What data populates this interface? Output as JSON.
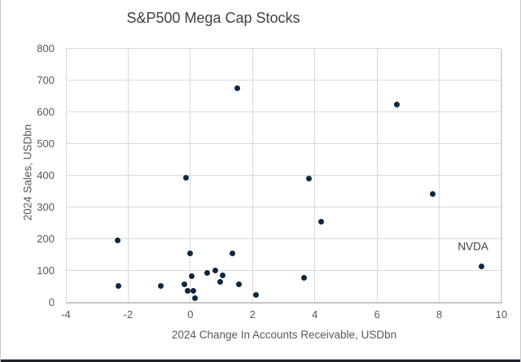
{
  "chart_data": {
    "type": "scatter",
    "title": "S&P500 Mega Cap Stocks",
    "xlabel": "2024 Change In Accounts Receivable, USDbn",
    "ylabel": "2024 Sales, USDbn",
    "xlim": [
      -4,
      10
    ],
    "ylim": [
      0,
      800
    ],
    "xticks": [
      -4,
      -2,
      0,
      2,
      4,
      6,
      8,
      10
    ],
    "yticks": [
      0,
      100,
      200,
      300,
      400,
      500,
      600,
      700,
      800
    ],
    "grid": true,
    "legend": false,
    "points": [
      {
        "x": -2.35,
        "y": 195
      },
      {
        "x": -2.3,
        "y": 52
      },
      {
        "x": -0.95,
        "y": 52
      },
      {
        "x": -0.2,
        "y": 56
      },
      {
        "x": -0.1,
        "y": 37
      },
      {
        "x": -0.15,
        "y": 393
      },
      {
        "x": 0.0,
        "y": 154
      },
      {
        "x": 0.05,
        "y": 83
      },
      {
        "x": 0.1,
        "y": 35
      },
      {
        "x": 0.15,
        "y": 12
      },
      {
        "x": 0.55,
        "y": 92
      },
      {
        "x": 0.8,
        "y": 100
      },
      {
        "x": 0.95,
        "y": 64
      },
      {
        "x": 1.05,
        "y": 85
      },
      {
        "x": 1.35,
        "y": 155
      },
      {
        "x": 1.5,
        "y": 675
      },
      {
        "x": 1.55,
        "y": 57
      },
      {
        "x": 2.1,
        "y": 23
      },
      {
        "x": 3.65,
        "y": 78
      },
      {
        "x": 3.8,
        "y": 391
      },
      {
        "x": 4.2,
        "y": 253
      },
      {
        "x": 6.65,
        "y": 622
      },
      {
        "x": 7.8,
        "y": 342
      },
      {
        "x": 9.35,
        "y": 113,
        "label": "NVDA"
      }
    ],
    "annotations": [
      {
        "text": "NVDA",
        "x": 9.35,
        "y": 113,
        "dx": -10,
        "dy": -24
      }
    ],
    "colors": {
      "marker": "#0e2841",
      "gridline": "#d9d9d9",
      "axis_line": "#b3b3b3",
      "tick_text": "#595959",
      "title_text": "#404040",
      "annotation_text": "#404040",
      "window_bottom_edge": "#20242e"
    }
  }
}
